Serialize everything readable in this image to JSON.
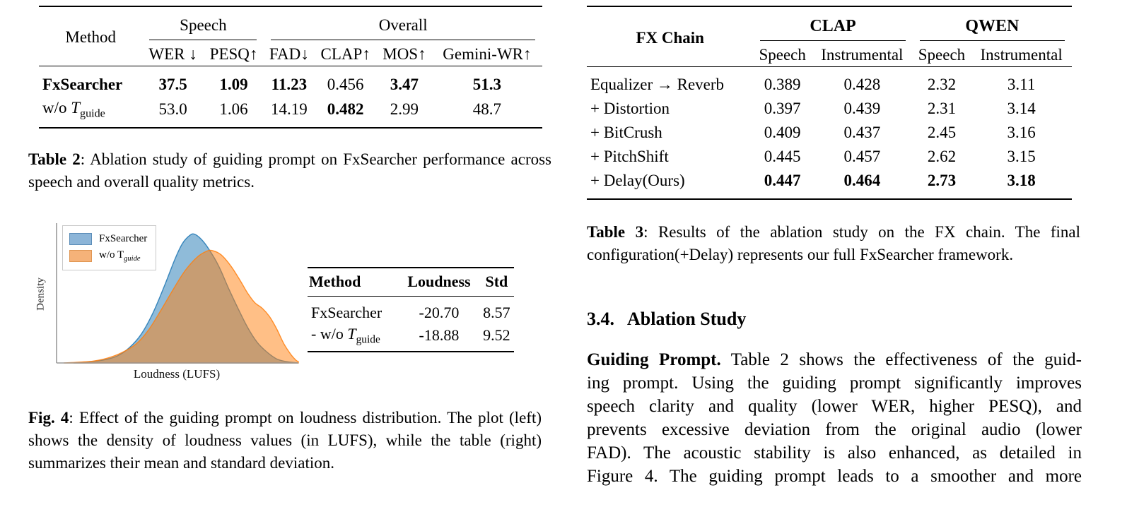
{
  "table2": {
    "header": {
      "method": "Method",
      "speech": "Speech",
      "overall": "Overall",
      "cols": [
        "WER ↓",
        "PESQ↑",
        "FAD↓",
        "CLAP↑",
        "MOS↑",
        "Gemini-WR↑"
      ]
    },
    "rows": [
      {
        "method": "FxSearcher",
        "values": [
          "37.5",
          "1.09",
          "11.23",
          "0.456",
          "3.47",
          "51.3"
        ]
      },
      {
        "method_prefix": "w/o ",
        "method_t": "T",
        "method_sub": "guide",
        "values": [
          "53.0",
          "1.06",
          "14.19",
          "0.482",
          "2.99",
          "48.7"
        ]
      }
    ],
    "caption_label": "Table 2",
    "caption_text": ":  Ablation study of guiding prompt on FxSearcher performance across speech and overall quality metrics."
  },
  "figure": {
    "legend": [
      {
        "label": "FxSearcher"
      },
      {
        "label_prefix": "w/o T",
        "label_sub": "guide"
      }
    ],
    "ylabel": "Density",
    "xlabel": "Loudness (LUFS)",
    "inset_table": {
      "headers": [
        "Method",
        "Loudness",
        "Std"
      ],
      "rows": [
        {
          "method": "FxSearcher",
          "loudness": "-20.70",
          "std": "8.57"
        },
        {
          "method_prefix": "- w/o ",
          "method_t": "T",
          "method_sub": "guide",
          "loudness": "-18.88",
          "std": "9.52"
        }
      ]
    },
    "caption_label": "Fig. 4",
    "caption_text": ": Effect of the guiding prompt on loudness distribution.  The plot (left) shows the density of loudness values (in LUFS), while the table (right) summarizes their mean and standard deviation."
  },
  "chart_data": {
    "type": "area",
    "subtype": "kde-density",
    "title": "",
    "xlabel": "Loudness (LUFS)",
    "ylabel": "Density",
    "grid": false,
    "axis_ticks": false,
    "legend_position": "upper left",
    "series": [
      {
        "name": "FxSearcher",
        "color": "#1f77b4",
        "fill_opacity": 0.5,
        "mean_lufs": -20.7,
        "std_lufs": 8.57,
        "points_norm": [
          [
            0.07,
            0.0
          ],
          [
            0.13,
            0.008
          ],
          [
            0.19,
            0.02
          ],
          [
            0.25,
            0.05
          ],
          [
            0.3,
            0.11
          ],
          [
            0.35,
            0.21
          ],
          [
            0.4,
            0.37
          ],
          [
            0.45,
            0.58
          ],
          [
            0.49,
            0.76
          ],
          [
            0.52,
            0.87
          ],
          [
            0.55,
            0.93
          ],
          [
            0.57,
            0.94
          ],
          [
            0.6,
            0.9
          ],
          [
            0.63,
            0.83
          ],
          [
            0.67,
            0.71
          ],
          [
            0.71,
            0.55
          ],
          [
            0.75,
            0.4
          ],
          [
            0.79,
            0.26
          ],
          [
            0.83,
            0.15
          ],
          [
            0.87,
            0.08
          ],
          [
            0.91,
            0.03
          ],
          [
            0.95,
            0.01
          ],
          [
            1.0,
            0.0
          ]
        ]
      },
      {
        "name": "w/o T_guide",
        "color": "#ff7f0e",
        "fill_opacity": 0.5,
        "mean_lufs": -18.88,
        "std_lufs": 9.52,
        "points_norm": [
          [
            0.03,
            0.0
          ],
          [
            0.09,
            0.005
          ],
          [
            0.15,
            0.013
          ],
          [
            0.21,
            0.035
          ],
          [
            0.27,
            0.075
          ],
          [
            0.33,
            0.14
          ],
          [
            0.38,
            0.24
          ],
          [
            0.43,
            0.38
          ],
          [
            0.48,
            0.53
          ],
          [
            0.53,
            0.67
          ],
          [
            0.58,
            0.77
          ],
          [
            0.62,
            0.815
          ],
          [
            0.645,
            0.82
          ],
          [
            0.68,
            0.79
          ],
          [
            0.72,
            0.71
          ],
          [
            0.76,
            0.6
          ],
          [
            0.79,
            0.51
          ],
          [
            0.82,
            0.44
          ],
          [
            0.85,
            0.4
          ],
          [
            0.88,
            0.34
          ],
          [
            0.91,
            0.25
          ],
          [
            0.94,
            0.14
          ],
          [
            0.97,
            0.06
          ],
          [
            0.99,
            0.02
          ],
          [
            1.0,
            0.01
          ]
        ]
      }
    ]
  },
  "table3": {
    "header": {
      "fx_chain": "FX Chain",
      "clap": "CLAP",
      "qwen": "QWEN",
      "subcols": [
        "Speech",
        "Instrumental",
        "Speech",
        "Instrumental"
      ]
    },
    "rows": [
      {
        "label": "Equalizer → Reverb",
        "values": [
          "0.389",
          "0.428",
          "2.32",
          "3.11"
        ]
      },
      {
        "label": "+ Distortion",
        "values": [
          "0.397",
          "0.439",
          "2.31",
          "3.14"
        ]
      },
      {
        "label": "+ BitCrush",
        "values": [
          "0.409",
          "0.437",
          "2.45",
          "3.16"
        ]
      },
      {
        "label": "+ PitchShift",
        "values": [
          "0.445",
          "0.457",
          "2.62",
          "3.15"
        ]
      },
      {
        "label": "+ Delay(Ours)",
        "values": [
          "0.447",
          "0.464",
          "2.73",
          "3.18"
        ]
      }
    ],
    "caption_label": "Table 3",
    "caption_text": ":  Results of the ablation study on the FX chain.  The final configuration(+Delay) represents our full FxSearcher framework."
  },
  "section": {
    "number": "3.4.",
    "title": "Ablation Study"
  },
  "paragraph": {
    "lead": "Guiding Prompt.",
    "lines": [
      " Table 2 shows the effectiveness of the guid-",
      "ing prompt. Using the guiding prompt significantly improves",
      "speech clarity and quality (lower WER, higher PESQ), and",
      "prevents excessive deviation from the original audio (lower",
      "FAD). The acoustic stability is also enhanced, as detailed in",
      "Figure 4. The guiding prompt leads to a smoother and more"
    ]
  }
}
